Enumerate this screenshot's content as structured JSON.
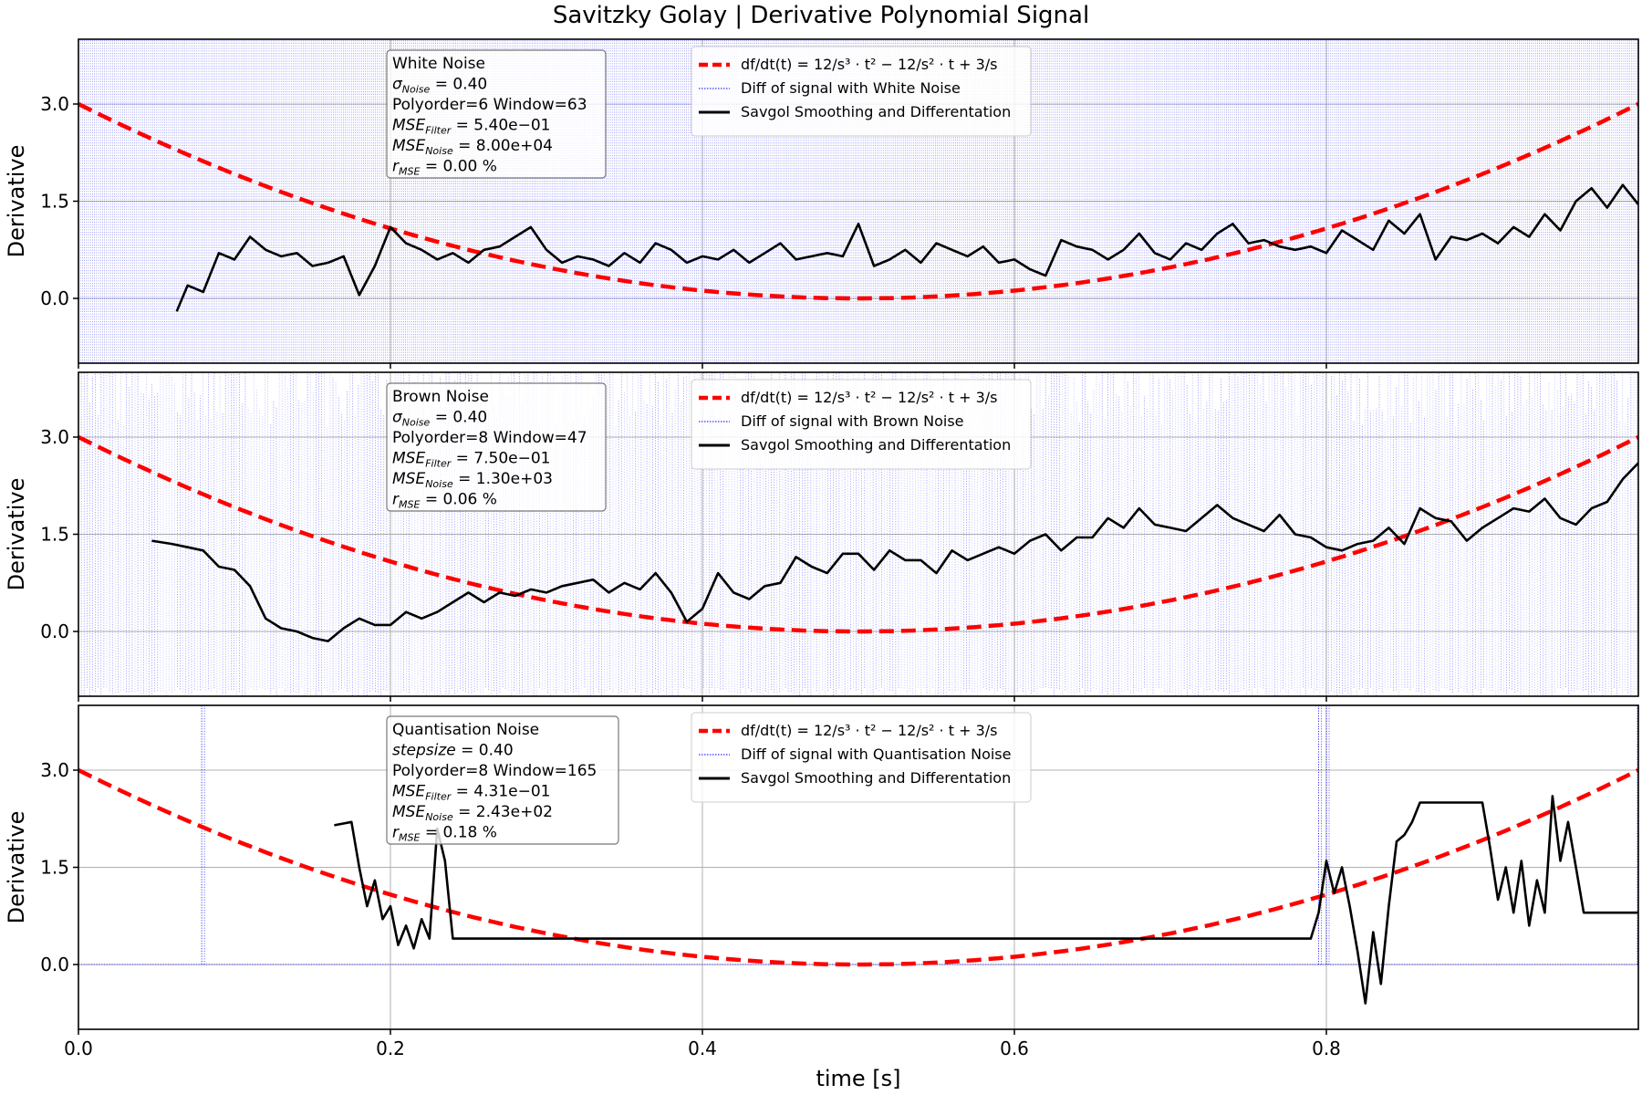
{
  "title": "Savitzky Golay | Derivative Polynomial Signal",
  "xlabel": "time [s]",
  "ylabel": "Derivative",
  "colors": {
    "true_derivative": "#ff0000",
    "noisy_diff": "#0000ff",
    "savgol": "#000000",
    "grid": "#b0b0b0"
  },
  "legend_formula": "df/dt(t) = 12/s³ · t² − 12/s² · t + 3/s",
  "x_ticks": [
    "0.0",
    "0.2",
    "0.4",
    "0.6",
    "0.8"
  ],
  "y_ticks": [
    "0.0",
    "1.5",
    "3.0"
  ],
  "chart_data": [
    {
      "type": "line",
      "noise_name": "White Noise",
      "info": [
        "White Noise",
        "σ_Noise = 0.40",
        "Polyorder=6 Window=63",
        "MSE_Filter = 5.40e−01",
        "MSE_Noise = 8.00e+04",
        "r_MSE = 0.00 %"
      ],
      "legend": [
        "df/dt(t) = 12/s³·t² − 12/s²·t + 3/s",
        "Diff of signal with White Noise",
        "Savgol Smoothing and Differentation"
      ],
      "xlim": [
        0,
        1.0
      ],
      "ylim": [
        -1.0,
        4.0
      ],
      "x_ticks": [
        0,
        0.2,
        0.4,
        0.6,
        0.8
      ],
      "y_ticks": [
        0,
        1.5,
        3.0
      ],
      "grid": true,
      "legend_position": "top-center",
      "series": [
        {
          "name": "df/dt(t) = 12/s³·t² − 12/s²·t + 3/s",
          "style": "dashed",
          "formula": "12*t^2 - 12*t + 3"
        },
        {
          "name": "Diff of signal with White Noise",
          "style": "dotted",
          "y_range": [
            -1.0,
            4.0
          ]
        },
        {
          "name": "Savgol Smoothing and Differentation",
          "style": "solid",
          "x": [
            0.063,
            0.07,
            0.08,
            0.09,
            0.1,
            0.11,
            0.12,
            0.13,
            0.14,
            0.15,
            0.16,
            0.17,
            0.18,
            0.19,
            0.2,
            0.21,
            0.22,
            0.23,
            0.24,
            0.25,
            0.26,
            0.27,
            0.28,
            0.29,
            0.3,
            0.31,
            0.32,
            0.33,
            0.34,
            0.35,
            0.36,
            0.37,
            0.38,
            0.39,
            0.4,
            0.41,
            0.42,
            0.43,
            0.44,
            0.45,
            0.46,
            0.47,
            0.48,
            0.49,
            0.5,
            0.51,
            0.52,
            0.53,
            0.54,
            0.55,
            0.56,
            0.57,
            0.58,
            0.59,
            0.6,
            0.61,
            0.62,
            0.63,
            0.64,
            0.65,
            0.66,
            0.67,
            0.68,
            0.69,
            0.7,
            0.71,
            0.72,
            0.73,
            0.74,
            0.75,
            0.76,
            0.77,
            0.78,
            0.79,
            0.8,
            0.81,
            0.82,
            0.83,
            0.84,
            0.85,
            0.86,
            0.87,
            0.88,
            0.89,
            0.9,
            0.91,
            0.92,
            0.93,
            0.94,
            0.95,
            0.96,
            0.97,
            0.98,
            0.99,
            1.0
          ],
          "y": [
            -0.2,
            0.2,
            0.1,
            0.7,
            0.6,
            0.95,
            0.75,
            0.65,
            0.7,
            0.5,
            0.55,
            0.65,
            0.05,
            0.5,
            1.1,
            0.85,
            0.75,
            0.6,
            0.7,
            0.55,
            0.75,
            0.8,
            0.95,
            1.1,
            0.75,
            0.55,
            0.65,
            0.6,
            0.5,
            0.7,
            0.55,
            0.85,
            0.75,
            0.55,
            0.65,
            0.6,
            0.75,
            0.55,
            0.7,
            0.85,
            0.6,
            0.65,
            0.7,
            0.65,
            1.15,
            0.5,
            0.6,
            0.75,
            0.55,
            0.85,
            0.75,
            0.65,
            0.8,
            0.55,
            0.6,
            0.45,
            0.35,
            0.9,
            0.8,
            0.75,
            0.6,
            0.75,
            1.0,
            0.7,
            0.6,
            0.85,
            0.75,
            1.0,
            1.15,
            0.85,
            0.9,
            0.8,
            0.75,
            0.8,
            0.7,
            1.05,
            0.9,
            0.75,
            1.2,
            1.0,
            1.3,
            0.6,
            0.95,
            0.9,
            1.0,
            0.85,
            1.1,
            0.95,
            1.3,
            1.05,
            1.5,
            1.7,
            1.4,
            1.75,
            1.45
          ]
        }
      ]
    },
    {
      "type": "line",
      "noise_name": "Brown Noise",
      "info": [
        "Brown Noise",
        "σ_Noise = 0.40",
        "Polyorder=8 Window=47",
        "MSE_Filter = 7.50e−01",
        "MSE_Noise = 1.30e+03",
        "r_MSE = 0.06 %"
      ],
      "legend": [
        "df/dt(t) = 12/s³·t² − 12/s²·t + 3/s",
        "Diff of signal with Brown Noise",
        "Savgol Smoothing and Differentation"
      ],
      "xlim": [
        0,
        1.0
      ],
      "ylim": [
        -1.0,
        4.0
      ],
      "x_ticks": [
        0,
        0.2,
        0.4,
        0.6,
        0.8
      ],
      "y_ticks": [
        0,
        1.5,
        3.0
      ],
      "grid": true,
      "legend_position": "top-center",
      "series": [
        {
          "name": "df/dt(t) = 12/s³·t² − 12/s²·t + 3/s",
          "style": "dashed",
          "formula": "12*t^2 - 12*t + 3"
        },
        {
          "name": "Diff of signal with Brown Noise",
          "style": "dotted",
          "y_range": [
            -1.0,
            4.0
          ]
        },
        {
          "name": "Savgol Smoothing and Differentation",
          "style": "solid",
          "x": [
            0.047,
            0.06,
            0.07,
            0.08,
            0.09,
            0.1,
            0.11,
            0.12,
            0.13,
            0.14,
            0.15,
            0.16,
            0.17,
            0.18,
            0.19,
            0.2,
            0.21,
            0.22,
            0.23,
            0.24,
            0.25,
            0.26,
            0.27,
            0.28,
            0.29,
            0.3,
            0.31,
            0.32,
            0.33,
            0.34,
            0.35,
            0.36,
            0.37,
            0.38,
            0.39,
            0.4,
            0.41,
            0.42,
            0.43,
            0.44,
            0.45,
            0.46,
            0.47,
            0.48,
            0.49,
            0.5,
            0.51,
            0.52,
            0.53,
            0.54,
            0.55,
            0.56,
            0.57,
            0.58,
            0.59,
            0.6,
            0.61,
            0.62,
            0.63,
            0.64,
            0.65,
            0.66,
            0.67,
            0.68,
            0.69,
            0.7,
            0.71,
            0.72,
            0.73,
            0.74,
            0.75,
            0.76,
            0.77,
            0.78,
            0.79,
            0.8,
            0.81,
            0.82,
            0.83,
            0.84,
            0.85,
            0.86,
            0.87,
            0.88,
            0.89,
            0.9,
            0.91,
            0.92,
            0.93,
            0.94,
            0.95,
            0.96,
            0.97,
            0.98,
            0.99,
            1.0
          ],
          "y": [
            1.4,
            1.35,
            1.3,
            1.25,
            1.0,
            0.95,
            0.7,
            0.2,
            0.05,
            0.0,
            -0.1,
            -0.15,
            0.05,
            0.2,
            0.1,
            0.1,
            0.3,
            0.2,
            0.3,
            0.45,
            0.6,
            0.45,
            0.6,
            0.55,
            0.65,
            0.6,
            0.7,
            0.75,
            0.8,
            0.6,
            0.75,
            0.65,
            0.9,
            0.6,
            0.15,
            0.35,
            0.9,
            0.6,
            0.5,
            0.7,
            0.75,
            1.15,
            1.0,
            0.9,
            1.2,
            1.2,
            0.95,
            1.25,
            1.1,
            1.1,
            0.9,
            1.25,
            1.1,
            1.2,
            1.3,
            1.2,
            1.4,
            1.5,
            1.25,
            1.45,
            1.45,
            1.75,
            1.6,
            1.9,
            1.65,
            1.6,
            1.55,
            1.75,
            1.95,
            1.75,
            1.65,
            1.55,
            1.8,
            1.5,
            1.45,
            1.3,
            1.25,
            1.35,
            1.4,
            1.6,
            1.35,
            1.9,
            1.75,
            1.7,
            1.4,
            1.6,
            1.75,
            1.9,
            1.85,
            2.05,
            1.75,
            1.65,
            1.9,
            2.0,
            2.35,
            2.6
          ]
        }
      ]
    },
    {
      "type": "line",
      "noise_name": "Quantisation Noise",
      "info": [
        "Quantisation Noise",
        "stepsize = 0.40",
        "Polyorder=8 Window=165",
        "MSE_Filter = 4.31e−01",
        "MSE_Noise = 2.43e+02",
        "r_MSE = 0.18 %"
      ],
      "legend": [
        "df/dt(t) = 12/s³·t² − 12/s²·t + 3/s",
        "Diff of signal with Quantisation Noise",
        "Savgol Smoothing and Differentation"
      ],
      "xlim": [
        0,
        1.0
      ],
      "ylim": [
        -1.0,
        4.0
      ],
      "x_ticks": [
        0,
        0.2,
        0.4,
        0.6,
        0.8
      ],
      "y_ticks": [
        0,
        1.5,
        3.0
      ],
      "grid": true,
      "legend_position": "top-center",
      "series": [
        {
          "name": "df/dt(t) = 12/s³·t² − 12/s²·t + 3/s",
          "style": "dashed",
          "formula": "12*t^2 - 12*t + 3"
        },
        {
          "name": "Diff of signal with Quantisation Noise",
          "style": "dotted",
          "spikes_x": [
            0.079,
            0.795,
            0.8,
            1.0
          ]
        },
        {
          "name": "Savgol Smoothing and Differentation",
          "style": "solid",
          "x": [
            0.164,
            0.175,
            0.18,
            0.185,
            0.19,
            0.195,
            0.2,
            0.205,
            0.21,
            0.215,
            0.22,
            0.225,
            0.23,
            0.235,
            0.24,
            0.243,
            0.79,
            0.795,
            0.8,
            0.805,
            0.81,
            0.815,
            0.82,
            0.825,
            0.83,
            0.835,
            0.84,
            0.845,
            0.85,
            0.855,
            0.86,
            0.87,
            0.88,
            0.9,
            0.905,
            0.91,
            0.915,
            0.92,
            0.925,
            0.93,
            0.935,
            0.94,
            0.945,
            0.95,
            0.955,
            0.96,
            0.965,
            0.97,
            1.0
          ],
          "y": [
            2.15,
            2.2,
            1.5,
            0.9,
            1.3,
            0.7,
            0.9,
            0.3,
            0.6,
            0.25,
            0.7,
            0.4,
            2.1,
            1.6,
            0.4,
            0.4,
            0.4,
            0.8,
            1.6,
            1.1,
            1.5,
            0.9,
            0.2,
            -0.6,
            0.5,
            -0.3,
            0.9,
            1.9,
            2.0,
            2.2,
            2.5,
            2.5,
            2.5,
            2.5,
            1.8,
            1.0,
            1.5,
            0.8,
            1.6,
            0.6,
            1.3,
            0.8,
            2.6,
            1.6,
            2.2,
            1.5,
            0.8,
            0.8,
            0.8
          ]
        }
      ]
    }
  ]
}
